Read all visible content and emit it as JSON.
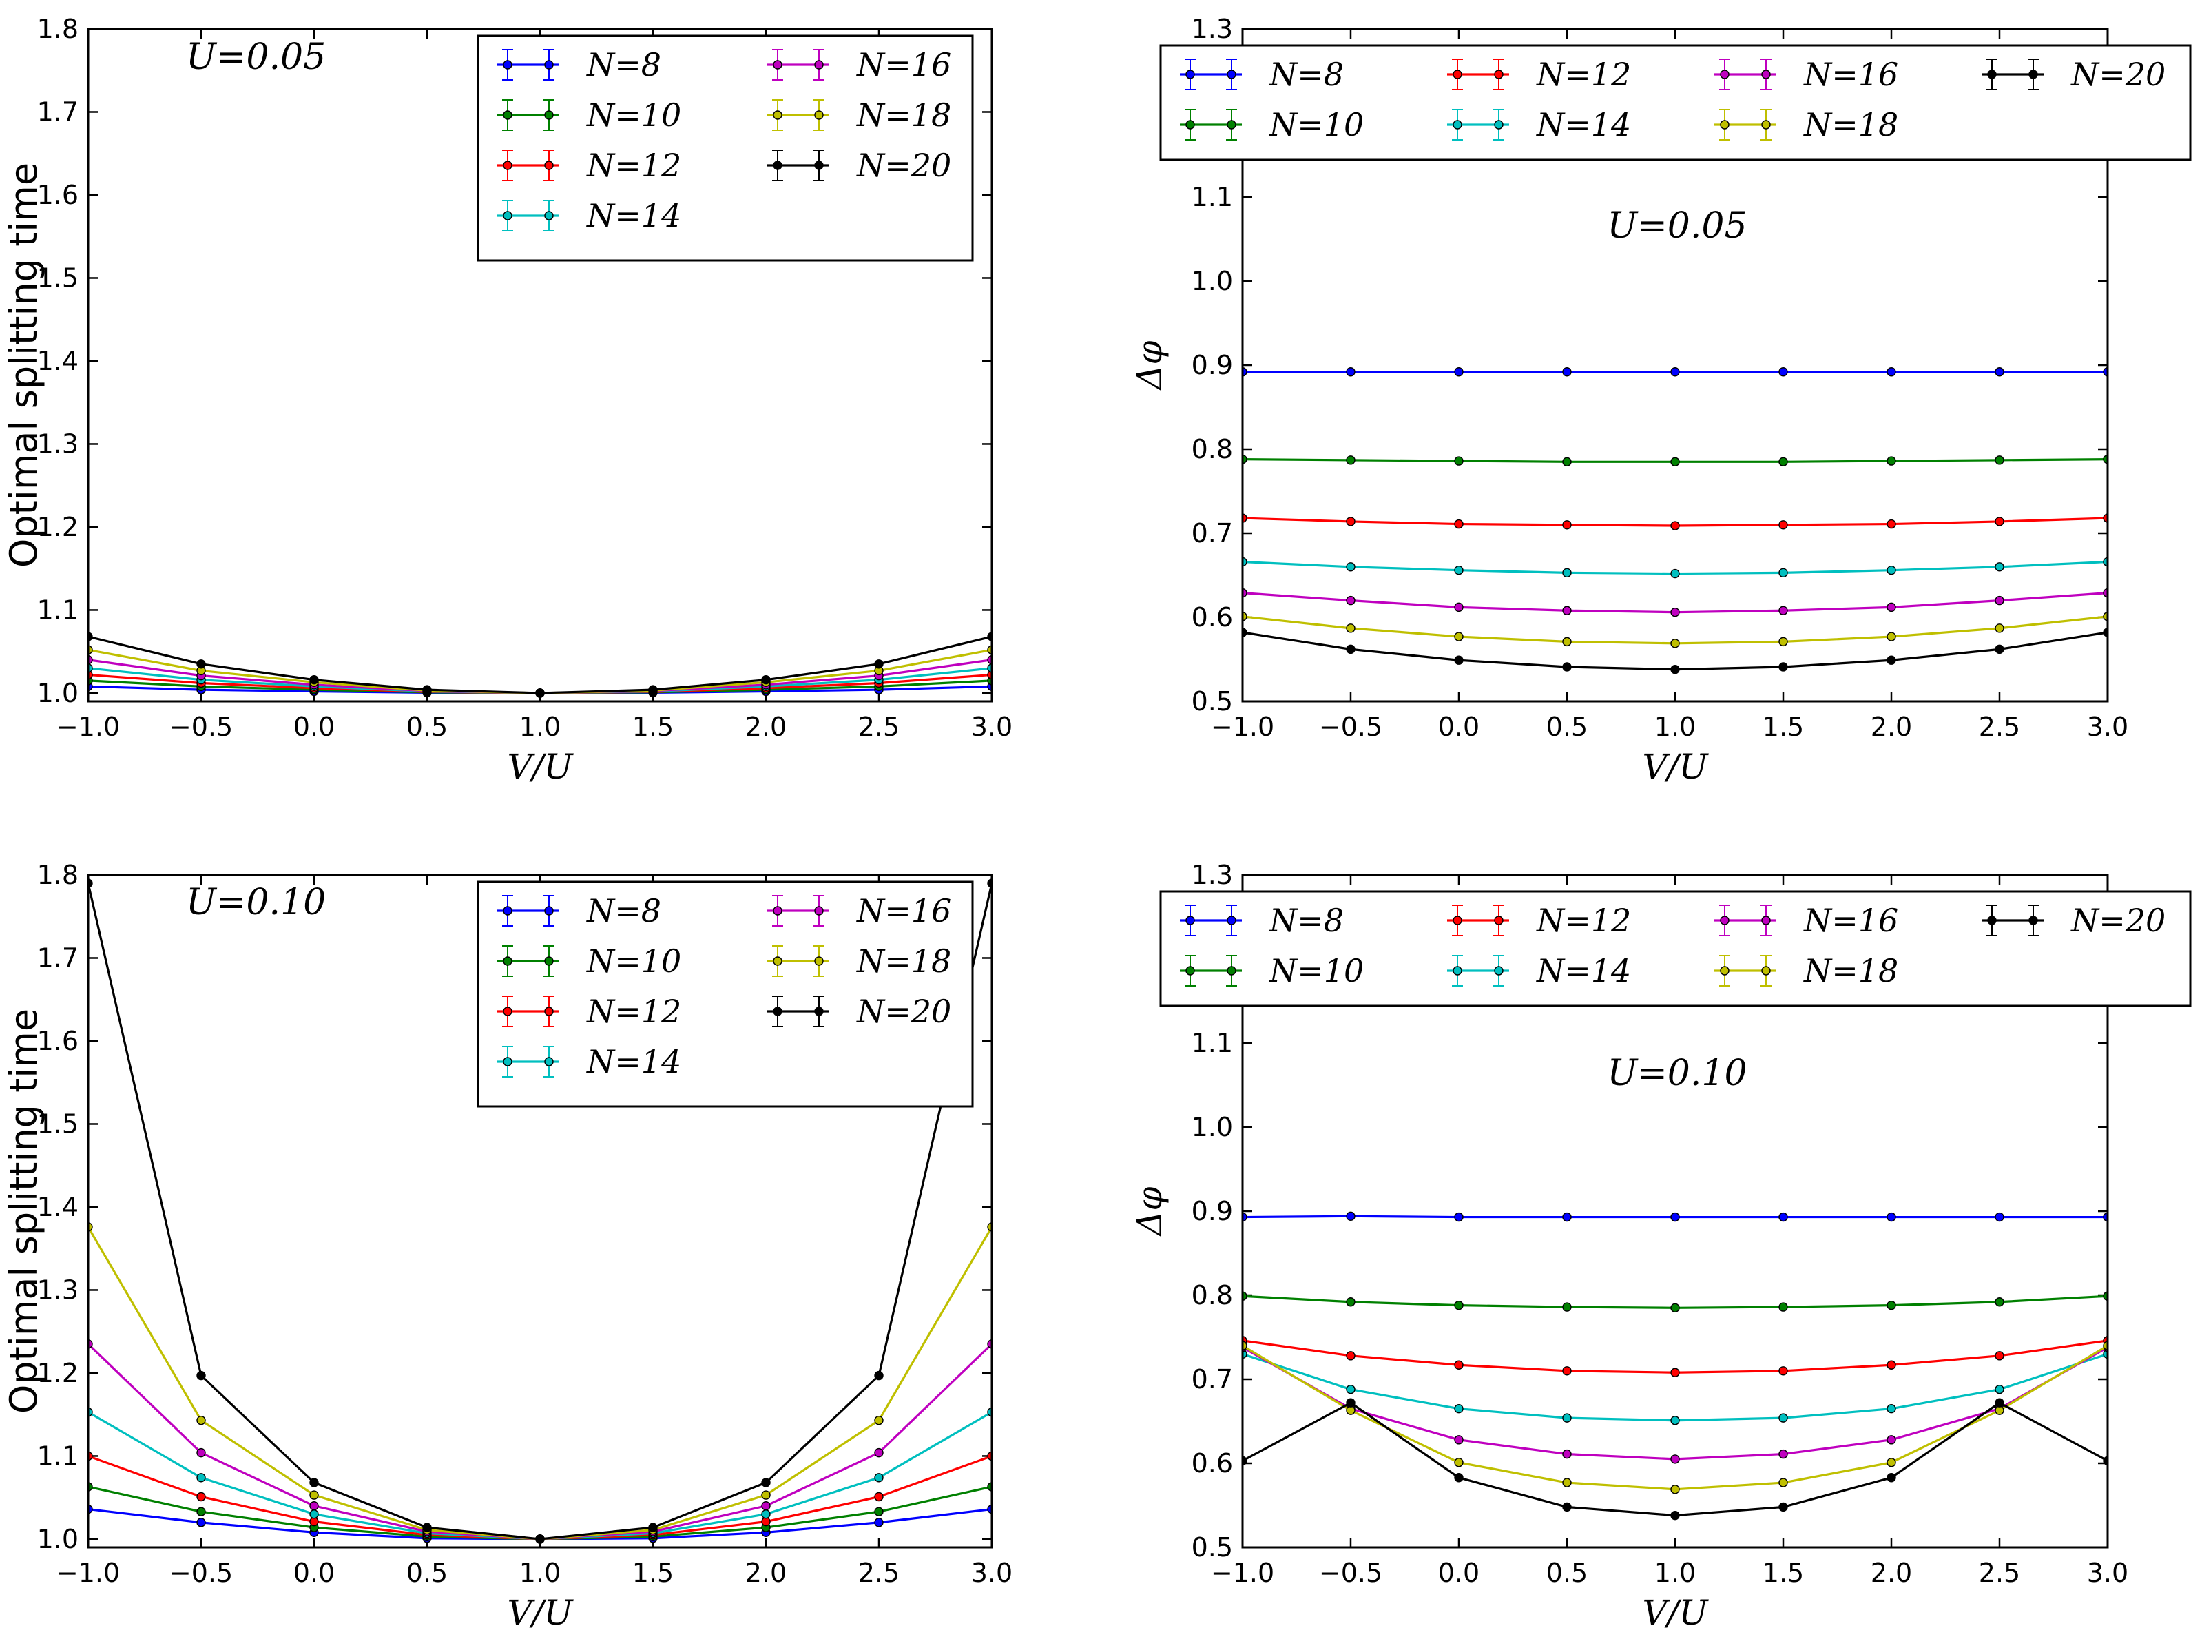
{
  "colors": {
    "N=8": "#0000ff",
    "N=10": "#008000",
    "N=12": "#ff0000",
    "N=14": "#00bfbf",
    "N=16": "#bf00bf",
    "N=18": "#bfbf00",
    "N=20": "#000000"
  },
  "chart_data": [
    {
      "id": "a",
      "type": "line",
      "title": "",
      "annotation": "U=0.05",
      "xlabel": "V/U",
      "ylabel": "Optimal splitting time",
      "x": [
        -1.0,
        -0.5,
        0.0,
        0.5,
        1.0,
        1.5,
        2.0,
        2.5,
        3.0
      ],
      "xlim": [
        -1.0,
        3.0
      ],
      "ylim": [
        0.99,
        1.8
      ],
      "xticks": [
        "−1.0",
        "−0.5",
        "0.0",
        "0.5",
        "1.0",
        "1.5",
        "2.0",
        "2.5",
        "3.0"
      ],
      "yticks": [
        "1.0",
        "1.1",
        "1.2",
        "1.3",
        "1.4",
        "1.5",
        "1.6",
        "1.7",
        "1.8"
      ],
      "legend": {
        "placement": "top-right",
        "columns": 2
      },
      "series": [
        {
          "name": "N=8",
          "label": "N=8",
          "values": [
            1.008,
            1.004,
            1.002,
            1.0005,
            1.0,
            1.0005,
            1.002,
            1.004,
            1.008
          ]
        },
        {
          "name": "N=10",
          "label": "N=10",
          "values": [
            1.015,
            1.008,
            1.004,
            1.001,
            1.0,
            1.001,
            1.004,
            1.008,
            1.015
          ]
        },
        {
          "name": "N=12",
          "label": "N=12",
          "values": [
            1.022,
            1.012,
            1.006,
            1.0015,
            1.0,
            1.0015,
            1.006,
            1.012,
            1.022
          ]
        },
        {
          "name": "N=14",
          "label": "N=14",
          "values": [
            1.03,
            1.016,
            1.008,
            1.002,
            1.0,
            1.002,
            1.008,
            1.016,
            1.03
          ]
        },
        {
          "name": "N=16",
          "label": "N=16",
          "values": [
            1.04,
            1.021,
            1.01,
            1.0025,
            1.0,
            1.0025,
            1.01,
            1.021,
            1.04
          ]
        },
        {
          "name": "N=18",
          "label": "N=18",
          "values": [
            1.052,
            1.027,
            1.013,
            1.003,
            1.0,
            1.003,
            1.013,
            1.027,
            1.052
          ]
        },
        {
          "name": "N=20",
          "label": "N=20",
          "values": [
            1.068,
            1.035,
            1.016,
            1.004,
            1.0,
            1.004,
            1.016,
            1.035,
            1.068
          ]
        }
      ]
    },
    {
      "id": "b",
      "type": "line",
      "title": "",
      "annotation": "U=0.05",
      "xlabel": "V/U",
      "ylabel": "Δφ",
      "x": [
        -1.0,
        -0.5,
        0.0,
        0.5,
        1.0,
        1.5,
        2.0,
        2.5,
        3.0
      ],
      "xlim": [
        -1.0,
        3.0
      ],
      "ylim": [
        0.5,
        1.3
      ],
      "xticks": [
        "−1.0",
        "−0.5",
        "0.0",
        "0.5",
        "1.0",
        "1.5",
        "2.0",
        "2.5",
        "3.0"
      ],
      "yticks": [
        "0.5",
        "0.6",
        "0.7",
        "0.8",
        "0.9",
        "1.0",
        "1.1",
        "1.2",
        "1.3"
      ],
      "legend": {
        "placement": "top",
        "columns": 4
      },
      "series": [
        {
          "name": "N=8",
          "label": "N=8",
          "values": [
            0.892,
            0.892,
            0.892,
            0.892,
            0.892,
            0.892,
            0.892,
            0.892,
            0.892
          ]
        },
        {
          "name": "N=10",
          "label": "N=10",
          "values": [
            0.788,
            0.787,
            0.786,
            0.785,
            0.785,
            0.785,
            0.786,
            0.787,
            0.788
          ]
        },
        {
          "name": "N=12",
          "label": "N=12",
          "values": [
            0.718,
            0.714,
            0.711,
            0.71,
            0.709,
            0.71,
            0.711,
            0.714,
            0.718
          ]
        },
        {
          "name": "N=14",
          "label": "N=14",
          "values": [
            0.666,
            0.66,
            0.656,
            0.653,
            0.652,
            0.653,
            0.656,
            0.66,
            0.666
          ]
        },
        {
          "name": "N=16",
          "label": "N=16",
          "values": [
            0.629,
            0.62,
            0.612,
            0.608,
            0.606,
            0.608,
            0.612,
            0.62,
            0.629
          ]
        },
        {
          "name": "N=18",
          "label": "N=18",
          "values": [
            0.601,
            0.587,
            0.577,
            0.571,
            0.569,
            0.571,
            0.577,
            0.587,
            0.601
          ]
        },
        {
          "name": "N=20",
          "label": "N=20",
          "values": [
            0.582,
            0.562,
            0.549,
            0.541,
            0.538,
            0.541,
            0.549,
            0.562,
            0.582
          ]
        }
      ]
    },
    {
      "id": "c",
      "type": "line",
      "title": "",
      "annotation": "U=0.10",
      "xlabel": "V/U",
      "ylabel": "Optimal splitting time",
      "x": [
        -1.0,
        -0.5,
        0.0,
        0.5,
        1.0,
        1.5,
        2.0,
        2.5,
        3.0
      ],
      "xlim": [
        -1.0,
        3.0
      ],
      "ylim": [
        0.99,
        1.8
      ],
      "xticks": [
        "−1.0",
        "−0.5",
        "0.0",
        "0.5",
        "1.0",
        "1.5",
        "2.0",
        "2.5",
        "3.0"
      ],
      "yticks": [
        "1.0",
        "1.1",
        "1.2",
        "1.3",
        "1.4",
        "1.5",
        "1.6",
        "1.7",
        "1.8"
      ],
      "legend": {
        "placement": "top-right",
        "columns": 2
      },
      "series": [
        {
          "name": "N=8",
          "label": "N=8",
          "values": [
            1.036,
            1.02,
            1.008,
            1.001,
            1.0,
            1.001,
            1.008,
            1.02,
            1.036
          ]
        },
        {
          "name": "N=10",
          "label": "N=10",
          "values": [
            1.063,
            1.033,
            1.014,
            1.003,
            1.0,
            1.003,
            1.014,
            1.033,
            1.063
          ]
        },
        {
          "name": "N=12",
          "label": "N=12",
          "values": [
            1.1,
            1.051,
            1.021,
            1.005,
            1.0,
            1.005,
            1.021,
            1.051,
            1.1
          ]
        },
        {
          "name": "N=14",
          "label": "N=14",
          "values": [
            1.153,
            1.074,
            1.03,
            1.007,
            1.0,
            1.007,
            1.03,
            1.074,
            1.153
          ]
        },
        {
          "name": "N=16",
          "label": "N=16",
          "values": [
            1.235,
            1.104,
            1.04,
            1.009,
            1.0,
            1.009,
            1.04,
            1.104,
            1.235
          ]
        },
        {
          "name": "N=18",
          "label": "N=18",
          "values": [
            1.376,
            1.143,
            1.053,
            1.011,
            1.0,
            1.011,
            1.053,
            1.143,
            1.376
          ]
        },
        {
          "name": "N=20",
          "label": "N=20",
          "values": [
            1.79,
            1.197,
            1.068,
            1.014,
            1.0,
            1.014,
            1.068,
            1.197,
            1.79
          ]
        }
      ]
    },
    {
      "id": "d",
      "type": "line",
      "title": "",
      "annotation": "U=0.10",
      "xlabel": "V/U",
      "ylabel": "Δφ",
      "x": [
        -1.0,
        -0.5,
        0.0,
        0.5,
        1.0,
        1.5,
        2.0,
        2.5,
        3.0
      ],
      "xlim": [
        -1.0,
        3.0
      ],
      "ylim": [
        0.5,
        1.3
      ],
      "xticks": [
        "−1.0",
        "−0.5",
        "0.0",
        "0.5",
        "1.0",
        "1.5",
        "2.0",
        "2.5",
        "3.0"
      ],
      "yticks": [
        "0.5",
        "0.6",
        "0.7",
        "0.8",
        "0.9",
        "1.0",
        "1.1",
        "1.2",
        "1.3"
      ],
      "legend": {
        "placement": "top",
        "columns": 4
      },
      "series": [
        {
          "name": "N=8",
          "label": "N=8",
          "values": [
            0.893,
            0.894,
            0.893,
            0.893,
            0.893,
            0.893,
            0.893,
            0.893,
            0.893
          ]
        },
        {
          "name": "N=10",
          "label": "N=10",
          "values": [
            0.799,
            0.792,
            0.788,
            0.786,
            0.785,
            0.786,
            0.788,
            0.792,
            0.799
          ]
        },
        {
          "name": "N=12",
          "label": "N=12",
          "values": [
            0.746,
            0.728,
            0.717,
            0.71,
            0.708,
            0.71,
            0.717,
            0.728,
            0.746
          ]
        },
        {
          "name": "N=14",
          "label": "N=14",
          "values": [
            0.73,
            0.688,
            0.665,
            0.654,
            0.651,
            0.654,
            0.665,
            0.688,
            0.73
          ]
        },
        {
          "name": "N=16",
          "label": "N=16",
          "values": [
            0.738,
            0.665,
            0.628,
            0.611,
            0.605,
            0.611,
            0.628,
            0.665,
            0.738
          ]
        },
        {
          "name": "N=18",
          "label": "N=18",
          "values": [
            0.74,
            0.663,
            0.601,
            0.577,
            0.569,
            0.577,
            0.601,
            0.663,
            0.74
          ]
        },
        {
          "name": "N=20",
          "label": "N=20",
          "values": [
            0.603,
            0.672,
            0.583,
            0.548,
            0.538,
            0.548,
            0.583,
            0.672,
            0.603
          ]
        }
      ]
    }
  ]
}
